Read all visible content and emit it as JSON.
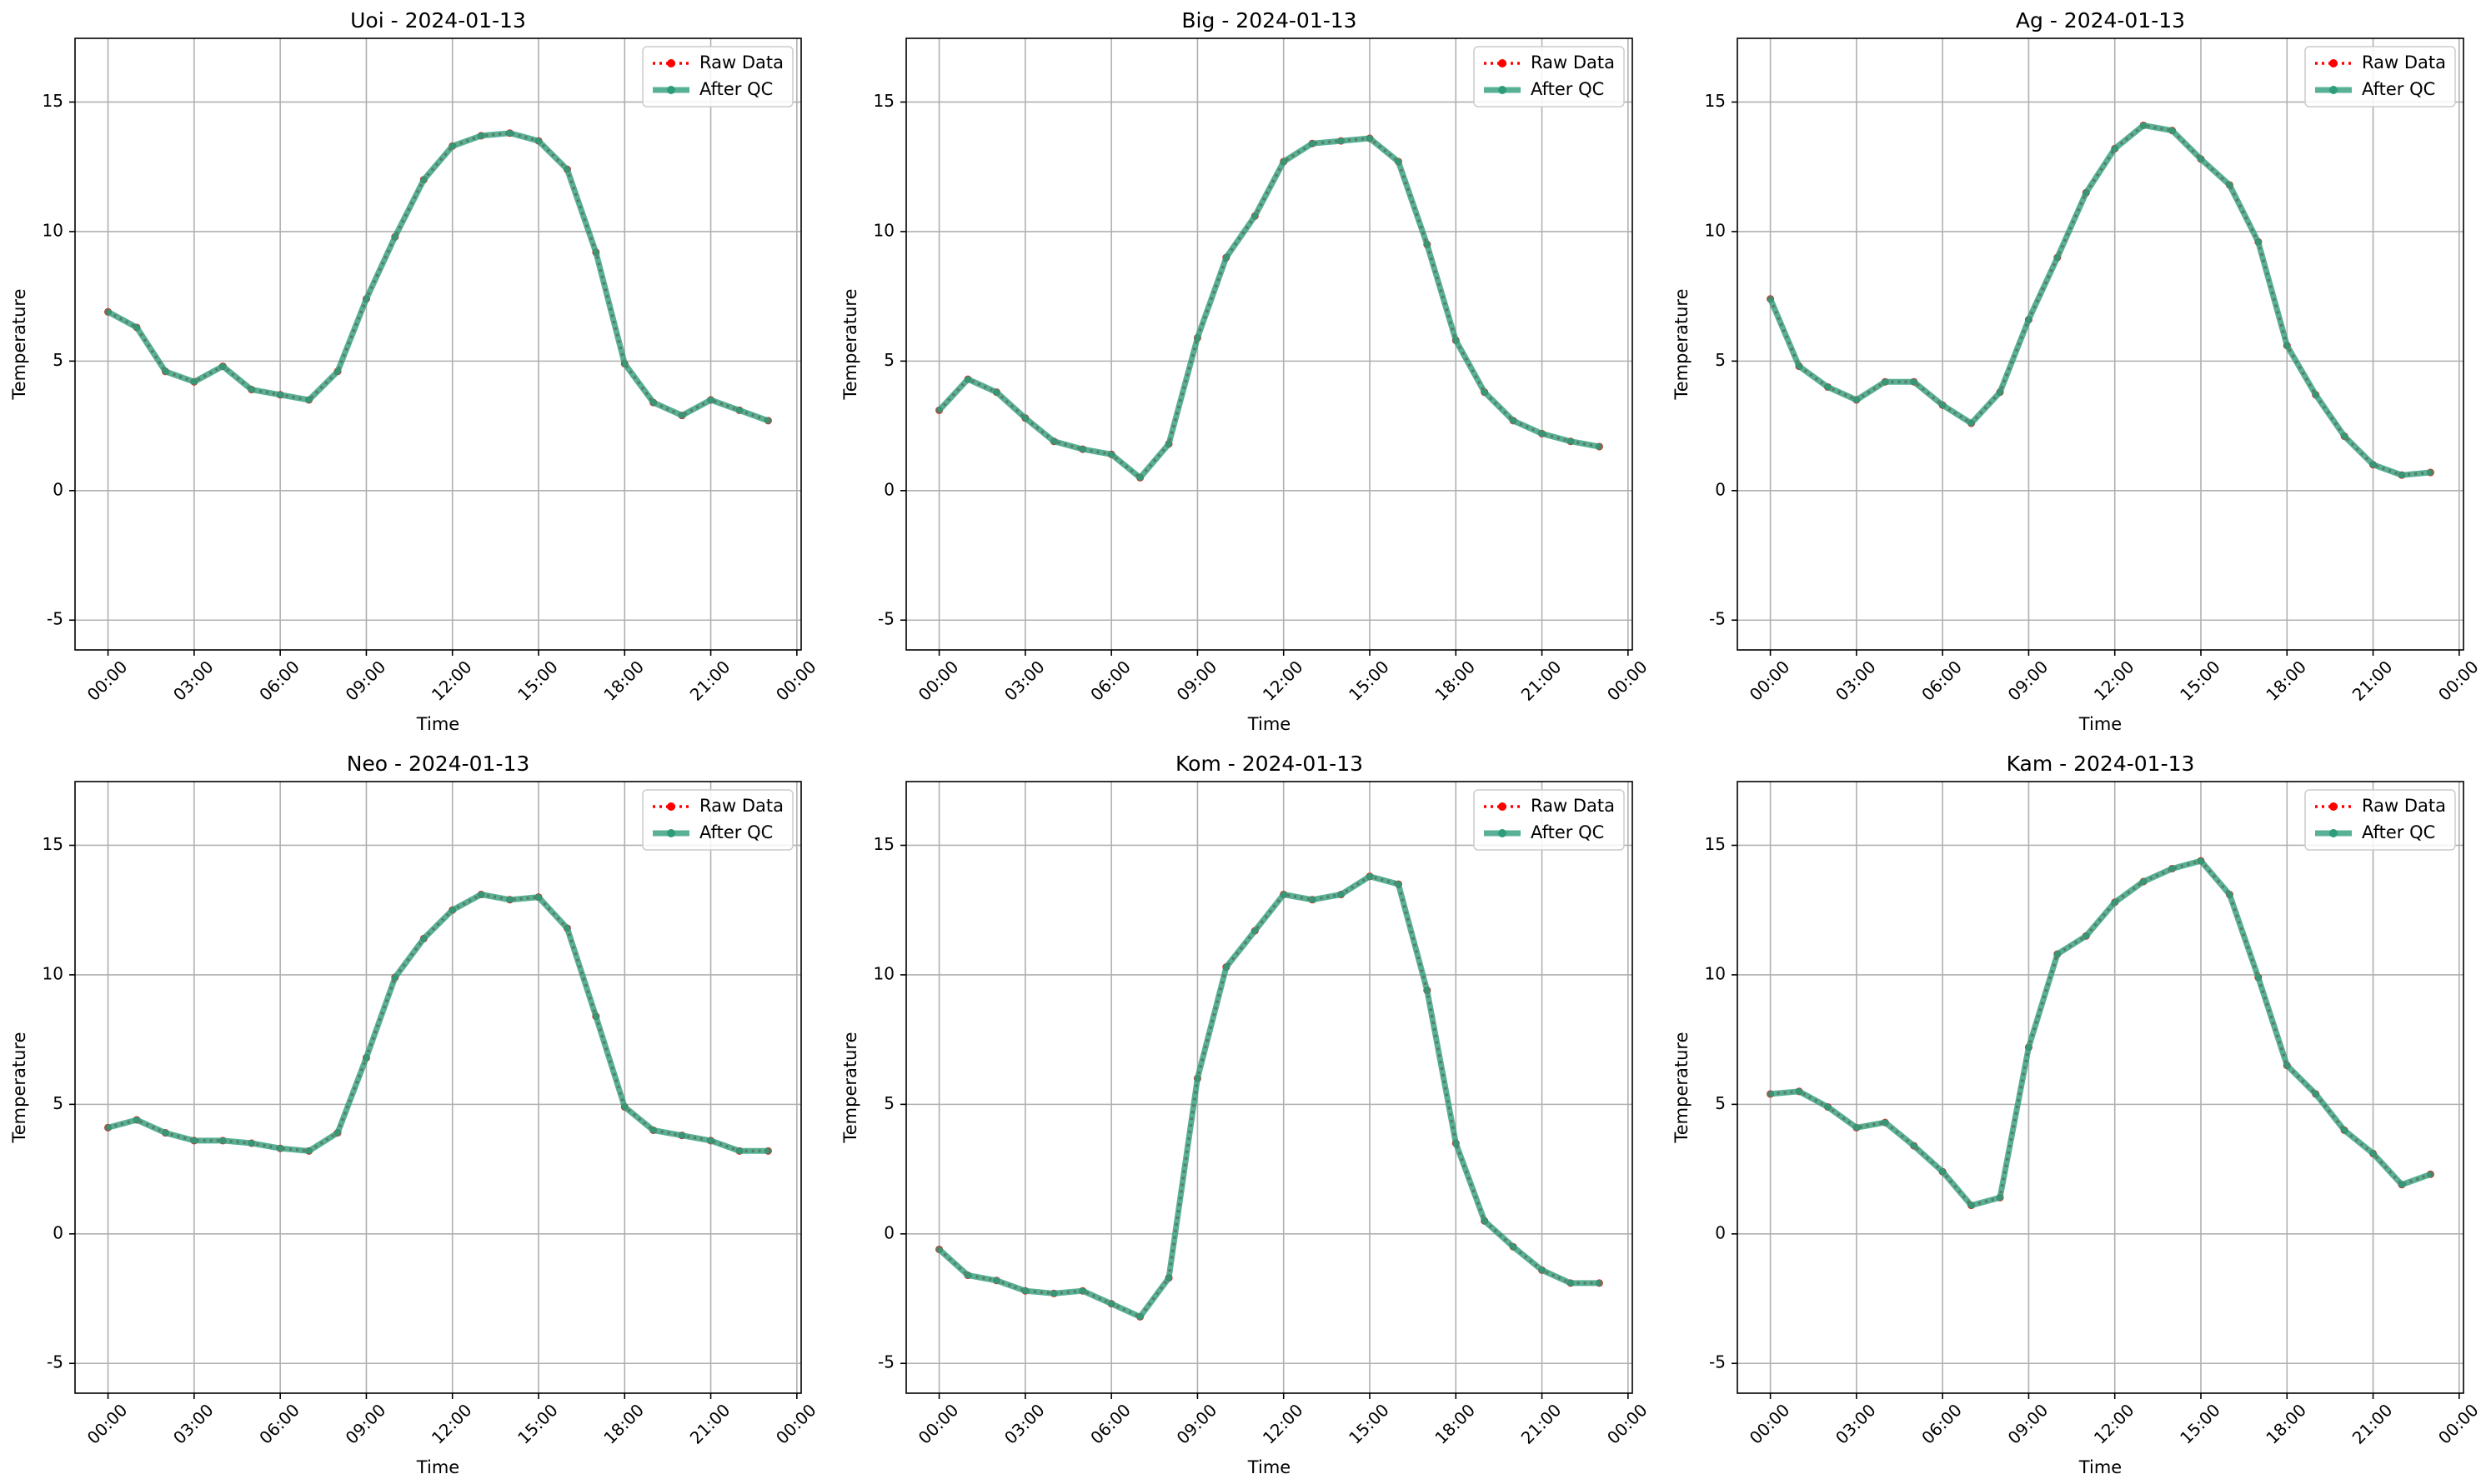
{
  "chart_data": [
    {
      "type": "line",
      "title": "Uoi - 2024-01-13",
      "xlabel": "Time",
      "ylabel": "Temperature",
      "x": [
        0,
        1,
        2,
        3,
        4,
        5,
        6,
        7,
        8,
        9,
        10,
        11,
        12,
        13,
        14,
        15,
        16,
        17,
        18,
        19,
        20,
        21,
        22,
        23
      ],
      "xlim": [
        -1.15,
        24.15
      ],
      "xticks": [
        {
          "value": 0,
          "label": "00:00"
        },
        {
          "value": 3,
          "label": "03:00"
        },
        {
          "value": 6,
          "label": "06:00"
        },
        {
          "value": 9,
          "label": "09:00"
        },
        {
          "value": 12,
          "label": "12:00"
        },
        {
          "value": 15,
          "label": "15:00"
        },
        {
          "value": 18,
          "label": "18:00"
        },
        {
          "value": 21,
          "label": "21:00"
        },
        {
          "value": 24,
          "label": "00:00"
        }
      ],
      "ylim": [
        -6.15,
        17.46
      ],
      "yticks": [
        -5,
        0,
        5,
        10,
        15
      ],
      "grid": true,
      "legend": "upper right",
      "series": [
        {
          "name": "Raw Data",
          "color": "#ff0000",
          "values": [
            6.9,
            6.3,
            4.6,
            4.2,
            4.8,
            3.9,
            3.7,
            3.5,
            4.6,
            7.4,
            9.8,
            12.0,
            13.3,
            13.7,
            13.8,
            13.5,
            12.4,
            9.2,
            4.9,
            3.4,
            2.9,
            3.5,
            3.1,
            2.7
          ]
        },
        {
          "name": "After QC",
          "color": "#2e9c7a",
          "values": [
            6.9,
            6.3,
            4.6,
            4.2,
            4.8,
            3.9,
            3.7,
            3.5,
            4.6,
            7.4,
            9.8,
            12.0,
            13.3,
            13.7,
            13.8,
            13.5,
            12.4,
            9.2,
            4.9,
            3.4,
            2.9,
            3.5,
            3.1,
            2.7
          ]
        }
      ]
    },
    {
      "type": "line",
      "title": "Big - 2024-01-13",
      "xlabel": "Time",
      "ylabel": "Temperature",
      "x": [
        0,
        1,
        2,
        3,
        4,
        5,
        6,
        7,
        8,
        9,
        10,
        11,
        12,
        13,
        14,
        15,
        16,
        17,
        18,
        19,
        20,
        21,
        22,
        23
      ],
      "xlim": [
        -1.15,
        24.15
      ],
      "xticks": [
        {
          "value": 0,
          "label": "00:00"
        },
        {
          "value": 3,
          "label": "03:00"
        },
        {
          "value": 6,
          "label": "06:00"
        },
        {
          "value": 9,
          "label": "09:00"
        },
        {
          "value": 12,
          "label": "12:00"
        },
        {
          "value": 15,
          "label": "15:00"
        },
        {
          "value": 18,
          "label": "18:00"
        },
        {
          "value": 21,
          "label": "21:00"
        },
        {
          "value": 24,
          "label": "00:00"
        }
      ],
      "ylim": [
        -6.15,
        17.46
      ],
      "yticks": [
        -5,
        0,
        5,
        10,
        15
      ],
      "grid": true,
      "legend": "upper right",
      "series": [
        {
          "name": "Raw Data",
          "color": "#ff0000",
          "values": [
            3.1,
            4.3,
            3.8,
            2.8,
            1.9,
            1.6,
            1.4,
            0.5,
            1.8,
            5.9,
            9.0,
            10.6,
            12.7,
            13.4,
            13.5,
            13.6,
            12.7,
            9.5,
            5.8,
            3.8,
            2.7,
            2.2,
            1.9,
            1.7
          ]
        },
        {
          "name": "After QC",
          "color": "#2e9c7a",
          "values": [
            3.1,
            4.3,
            3.8,
            2.8,
            1.9,
            1.6,
            1.4,
            0.5,
            1.8,
            5.9,
            9.0,
            10.6,
            12.7,
            13.4,
            13.5,
            13.6,
            12.7,
            9.5,
            5.8,
            3.8,
            2.7,
            2.2,
            1.9,
            1.7
          ]
        }
      ]
    },
    {
      "type": "line",
      "title": "Ag - 2024-01-13",
      "xlabel": "Time",
      "ylabel": "Temperature",
      "x": [
        0,
        1,
        2,
        3,
        4,
        5,
        6,
        7,
        8,
        9,
        10,
        11,
        12,
        13,
        14,
        15,
        16,
        17,
        18,
        19,
        20,
        21,
        22,
        23
      ],
      "xlim": [
        -1.15,
        24.15
      ],
      "xticks": [
        {
          "value": 0,
          "label": "00:00"
        },
        {
          "value": 3,
          "label": "03:00"
        },
        {
          "value": 6,
          "label": "06:00"
        },
        {
          "value": 9,
          "label": "09:00"
        },
        {
          "value": 12,
          "label": "12:00"
        },
        {
          "value": 15,
          "label": "15:00"
        },
        {
          "value": 18,
          "label": "18:00"
        },
        {
          "value": 21,
          "label": "21:00"
        },
        {
          "value": 24,
          "label": "00:00"
        }
      ],
      "ylim": [
        -6.15,
        17.46
      ],
      "yticks": [
        -5,
        0,
        5,
        10,
        15
      ],
      "grid": true,
      "legend": "upper right",
      "series": [
        {
          "name": "Raw Data",
          "color": "#ff0000",
          "values": [
            7.4,
            4.8,
            4.0,
            3.5,
            4.2,
            4.2,
            3.3,
            2.6,
            3.8,
            6.6,
            9.0,
            11.5,
            13.2,
            14.1,
            13.9,
            12.8,
            11.8,
            9.6,
            5.6,
            3.7,
            2.1,
            1.0,
            0.6,
            0.7
          ]
        },
        {
          "name": "After QC",
          "color": "#2e9c7a",
          "values": [
            7.4,
            4.8,
            4.0,
            3.5,
            4.2,
            4.2,
            3.3,
            2.6,
            3.8,
            6.6,
            9.0,
            11.5,
            13.2,
            14.1,
            13.9,
            12.8,
            11.8,
            9.6,
            5.6,
            3.7,
            2.1,
            1.0,
            0.6,
            0.7
          ]
        }
      ]
    },
    {
      "type": "line",
      "title": "Neo - 2024-01-13",
      "xlabel": "Time",
      "ylabel": "Temperature",
      "x": [
        0,
        1,
        2,
        3,
        4,
        5,
        6,
        7,
        8,
        9,
        10,
        11,
        12,
        13,
        14,
        15,
        16,
        17,
        18,
        19,
        20,
        21,
        22,
        23
      ],
      "xlim": [
        -1.15,
        24.15
      ],
      "xticks": [
        {
          "value": 0,
          "label": "00:00"
        },
        {
          "value": 3,
          "label": "03:00"
        },
        {
          "value": 6,
          "label": "06:00"
        },
        {
          "value": 9,
          "label": "09:00"
        },
        {
          "value": 12,
          "label": "12:00"
        },
        {
          "value": 15,
          "label": "15:00"
        },
        {
          "value": 18,
          "label": "18:00"
        },
        {
          "value": 21,
          "label": "21:00"
        },
        {
          "value": 24,
          "label": "00:00"
        }
      ],
      "ylim": [
        -6.15,
        17.46
      ],
      "yticks": [
        -5,
        0,
        5,
        10,
        15
      ],
      "grid": true,
      "legend": "upper right",
      "series": [
        {
          "name": "Raw Data",
          "color": "#ff0000",
          "values": [
            4.1,
            4.4,
            3.9,
            3.6,
            3.6,
            3.5,
            3.3,
            3.2,
            3.9,
            6.8,
            9.9,
            11.4,
            12.5,
            13.1,
            12.9,
            13.0,
            11.8,
            8.4,
            4.9,
            4.0,
            3.8,
            3.6,
            3.2,
            3.2
          ]
        },
        {
          "name": "After QC",
          "color": "#2e9c7a",
          "values": [
            4.1,
            4.4,
            3.9,
            3.6,
            3.6,
            3.5,
            3.3,
            3.2,
            3.9,
            6.8,
            9.9,
            11.4,
            12.5,
            13.1,
            12.9,
            13.0,
            11.8,
            8.4,
            4.9,
            4.0,
            3.8,
            3.6,
            3.2,
            3.2
          ]
        }
      ]
    },
    {
      "type": "line",
      "title": "Kom - 2024-01-13",
      "xlabel": "Time",
      "ylabel": "Temperature",
      "x": [
        0,
        1,
        2,
        3,
        4,
        5,
        6,
        7,
        8,
        9,
        10,
        11,
        12,
        13,
        14,
        15,
        16,
        17,
        18,
        19,
        20,
        21,
        22,
        23
      ],
      "xlim": [
        -1.15,
        24.15
      ],
      "xticks": [
        {
          "value": 0,
          "label": "00:00"
        },
        {
          "value": 3,
          "label": "03:00"
        },
        {
          "value": 6,
          "label": "06:00"
        },
        {
          "value": 9,
          "label": "09:00"
        },
        {
          "value": 12,
          "label": "12:00"
        },
        {
          "value": 15,
          "label": "15:00"
        },
        {
          "value": 18,
          "label": "18:00"
        },
        {
          "value": 21,
          "label": "21:00"
        },
        {
          "value": 24,
          "label": "00:00"
        }
      ],
      "ylim": [
        -6.15,
        17.46
      ],
      "yticks": [
        -5,
        0,
        5,
        10,
        15
      ],
      "grid": true,
      "legend": "upper right",
      "series": [
        {
          "name": "Raw Data",
          "color": "#ff0000",
          "values": [
            -0.6,
            -1.6,
            -1.8,
            -2.2,
            -2.3,
            -2.2,
            -2.7,
            -3.2,
            -1.7,
            6.0,
            10.3,
            11.7,
            13.1,
            12.9,
            13.1,
            13.8,
            13.5,
            9.4,
            3.5,
            0.5,
            -0.5,
            -1.4,
            -1.9,
            -1.9
          ]
        },
        {
          "name": "After QC",
          "color": "#2e9c7a",
          "values": [
            -0.6,
            -1.6,
            -1.8,
            -2.2,
            -2.3,
            -2.2,
            -2.7,
            -3.2,
            -1.7,
            6.0,
            10.3,
            11.7,
            13.1,
            12.9,
            13.1,
            13.8,
            13.5,
            9.4,
            3.5,
            0.5,
            -0.5,
            -1.4,
            -1.9,
            -1.9
          ]
        }
      ]
    },
    {
      "type": "line",
      "title": "Kam - 2024-01-13",
      "xlabel": "Time",
      "ylabel": "Temperature",
      "x": [
        0,
        1,
        2,
        3,
        4,
        5,
        6,
        7,
        8,
        9,
        10,
        11,
        12,
        13,
        14,
        15,
        16,
        17,
        18,
        19,
        20,
        21,
        22,
        23
      ],
      "xlim": [
        -1.15,
        24.15
      ],
      "xticks": [
        {
          "value": 0,
          "label": "00:00"
        },
        {
          "value": 3,
          "label": "03:00"
        },
        {
          "value": 6,
          "label": "06:00"
        },
        {
          "value": 9,
          "label": "09:00"
        },
        {
          "value": 12,
          "label": "12:00"
        },
        {
          "value": 15,
          "label": "15:00"
        },
        {
          "value": 18,
          "label": "18:00"
        },
        {
          "value": 21,
          "label": "21:00"
        },
        {
          "value": 24,
          "label": "00:00"
        }
      ],
      "ylim": [
        -6.15,
        17.46
      ],
      "yticks": [
        -5,
        0,
        5,
        10,
        15
      ],
      "grid": true,
      "legend": "upper right",
      "series": [
        {
          "name": "Raw Data",
          "color": "#ff0000",
          "values": [
            5.4,
            5.5,
            4.9,
            4.1,
            4.3,
            3.4,
            2.4,
            1.1,
            1.4,
            7.2,
            10.8,
            11.5,
            12.8,
            13.6,
            14.1,
            14.4,
            13.1,
            9.9,
            6.5,
            5.4,
            4.0,
            3.1,
            1.9,
            2.3
          ]
        },
        {
          "name": "After QC",
          "color": "#2e9c7a",
          "values": [
            5.4,
            5.5,
            4.9,
            4.1,
            4.3,
            3.4,
            2.4,
            1.1,
            1.4,
            7.2,
            10.8,
            11.5,
            12.8,
            13.6,
            14.1,
            14.4,
            13.1,
            9.9,
            6.5,
            5.4,
            4.0,
            3.1,
            1.9,
            2.3
          ]
        }
      ]
    }
  ]
}
